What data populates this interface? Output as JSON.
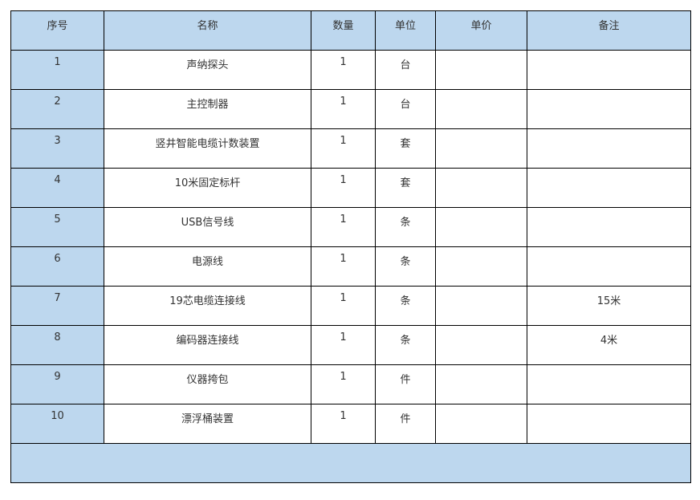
{
  "headers": [
    "序号",
    "名称",
    "数量",
    "单位",
    "单价",
    "备注"
  ],
  "rows": [
    [
      "1",
      "声纳探头",
      "1",
      "台",
      "",
      ""
    ],
    [
      "2",
      "主控制器",
      "1",
      "台",
      "",
      ""
    ],
    [
      "3",
      "竖井智能电缆计数装置",
      "1",
      "套",
      "",
      ""
    ],
    [
      "4",
      "10米固定标杆",
      "1",
      "套",
      "",
      ""
    ],
    [
      "5",
      "USB信号线",
      "1",
      "条",
      "",
      ""
    ],
    [
      "6",
      "电源线",
      "1",
      "条",
      "",
      ""
    ],
    [
      "7",
      "19芯电缆连接线",
      "1",
      "条",
      "",
      "15米"
    ],
    [
      "8",
      "编码器连接线",
      "1",
      "条",
      "",
      "4米"
    ],
    [
      "9",
      "仪器挎包",
      "1",
      "件",
      "",
      ""
    ],
    [
      "10",
      "漂浮桶装置",
      "1",
      "件",
      "",
      ""
    ]
  ],
  "colors": {
    "header_fill": "#BDD7EE",
    "border": "#000000"
  }
}
